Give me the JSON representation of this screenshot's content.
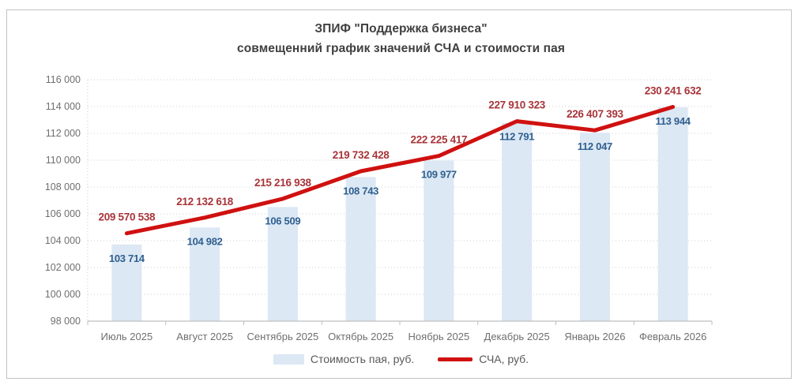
{
  "title": {
    "line1": "ЗПИФ \"Поддержка бизнеса\"",
    "line2": "совмещенний график значений СЧА и стоимости пая"
  },
  "legend": {
    "bar_label": "Стоимость пая, руб.",
    "line_label": "СЧА, руб."
  },
  "chart_data": {
    "type": "bar+line combo",
    "title": "ЗПИФ \"Поддержка бизнеса\" совмещенний график значений СЧА и стоимости пая",
    "categories": [
      "Июль 2025",
      "Август 2025",
      "Сентябрь 2025",
      "Октябрь 2025",
      "Ноябрь 2025",
      "Декабрь 2025",
      "Январь 2026",
      "Февраль 2026"
    ],
    "series": [
      {
        "name": "Стоимость пая, руб.",
        "type": "bar",
        "values": [
          103714,
          104982,
          106509,
          108743,
          109977,
          112791,
          112047,
          113944
        ],
        "color": "#dce8f4",
        "label_color": "#2f5f8f"
      },
      {
        "name": "СЧА, руб.",
        "type": "line",
        "values": [
          209570538,
          212132618,
          215216938,
          219732428,
          222225417,
          227910323,
          226407393,
          230241632
        ],
        "color": "#cf1110",
        "label_color": "#a8353a"
      }
    ],
    "y_axis": {
      "min": 98000,
      "max": 116000,
      "step": 2000
    },
    "y2_axis_hidden_estimated": {
      "min": 195200000,
      "max": 234700000
    },
    "grid": "horizontal dotted",
    "legend_position": "bottom",
    "colors": {
      "grid": "#d2d2d2",
      "axis": "#bfbfbf",
      "tick_label": "#6f6f6f",
      "title": "#404040",
      "legend_text": "#595959",
      "left_edge_dotted": "#b9c9dc"
    }
  }
}
